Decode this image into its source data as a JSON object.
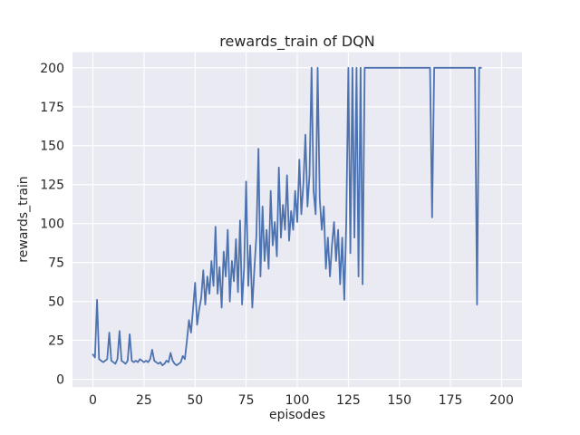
{
  "chart_data": {
    "type": "line",
    "title": "rewards_train of DQN",
    "xlabel": "episodes",
    "ylabel": "rewards_train",
    "x_start": 0,
    "x_step": 1,
    "xlim": [
      -10,
      210
    ],
    "ylim": [
      -5,
      210
    ],
    "xticks": [
      0,
      25,
      50,
      75,
      100,
      125,
      150,
      175,
      200
    ],
    "yticks": [
      0,
      25,
      50,
      75,
      100,
      125,
      150,
      175,
      200
    ],
    "grid": true,
    "legend": "none",
    "colors": {
      "line": "#4c72b0",
      "plot_bg": "#eaeaf2",
      "grid": "#ffffff",
      "text": "#262626",
      "figure_bg": "#ffffff"
    },
    "values": [
      16,
      14,
      51,
      13,
      12,
      11,
      12,
      13,
      30,
      12,
      11,
      10,
      13,
      31,
      12,
      11,
      10,
      12,
      29,
      12,
      11,
      12,
      11,
      13,
      12,
      11,
      12,
      11,
      13,
      19,
      12,
      11,
      10,
      11,
      9,
      10,
      12,
      11,
      17,
      12,
      10,
      9,
      10,
      11,
      15,
      13,
      25,
      38,
      30,
      45,
      62,
      35,
      45,
      52,
      70,
      48,
      66,
      55,
      76,
      60,
      98,
      55,
      72,
      46,
      82,
      66,
      96,
      50,
      76,
      63,
      90,
      56,
      102,
      48,
      72,
      127,
      60,
      86,
      46,
      71,
      92,
      148,
      66,
      111,
      76,
      96,
      71,
      121,
      86,
      101,
      79,
      136,
      91,
      112,
      96,
      131,
      89,
      108,
      96,
      121,
      101,
      141,
      106,
      126,
      157,
      111,
      131,
      200,
      121,
      106,
      200,
      116,
      96,
      111,
      71,
      91,
      66,
      86,
      101,
      76,
      96,
      61,
      91,
      51,
      101,
      200,
      81,
      200,
      91,
      200,
      66,
      200,
      61,
      200,
      200,
      200,
      200,
      200,
      200,
      200,
      200,
      200,
      200,
      200,
      200,
      200,
      200,
      200,
      200,
      200,
      200,
      200,
      200,
      200,
      200,
      200,
      200,
      200,
      200,
      200,
      200,
      200,
      200,
      200,
      200,
      200,
      104,
      200,
      200,
      200,
      200,
      200,
      200,
      200,
      200,
      200,
      200,
      200,
      200,
      200,
      200,
      200,
      200,
      200,
      200,
      200,
      200,
      200,
      48,
      200,
      200
    ]
  }
}
